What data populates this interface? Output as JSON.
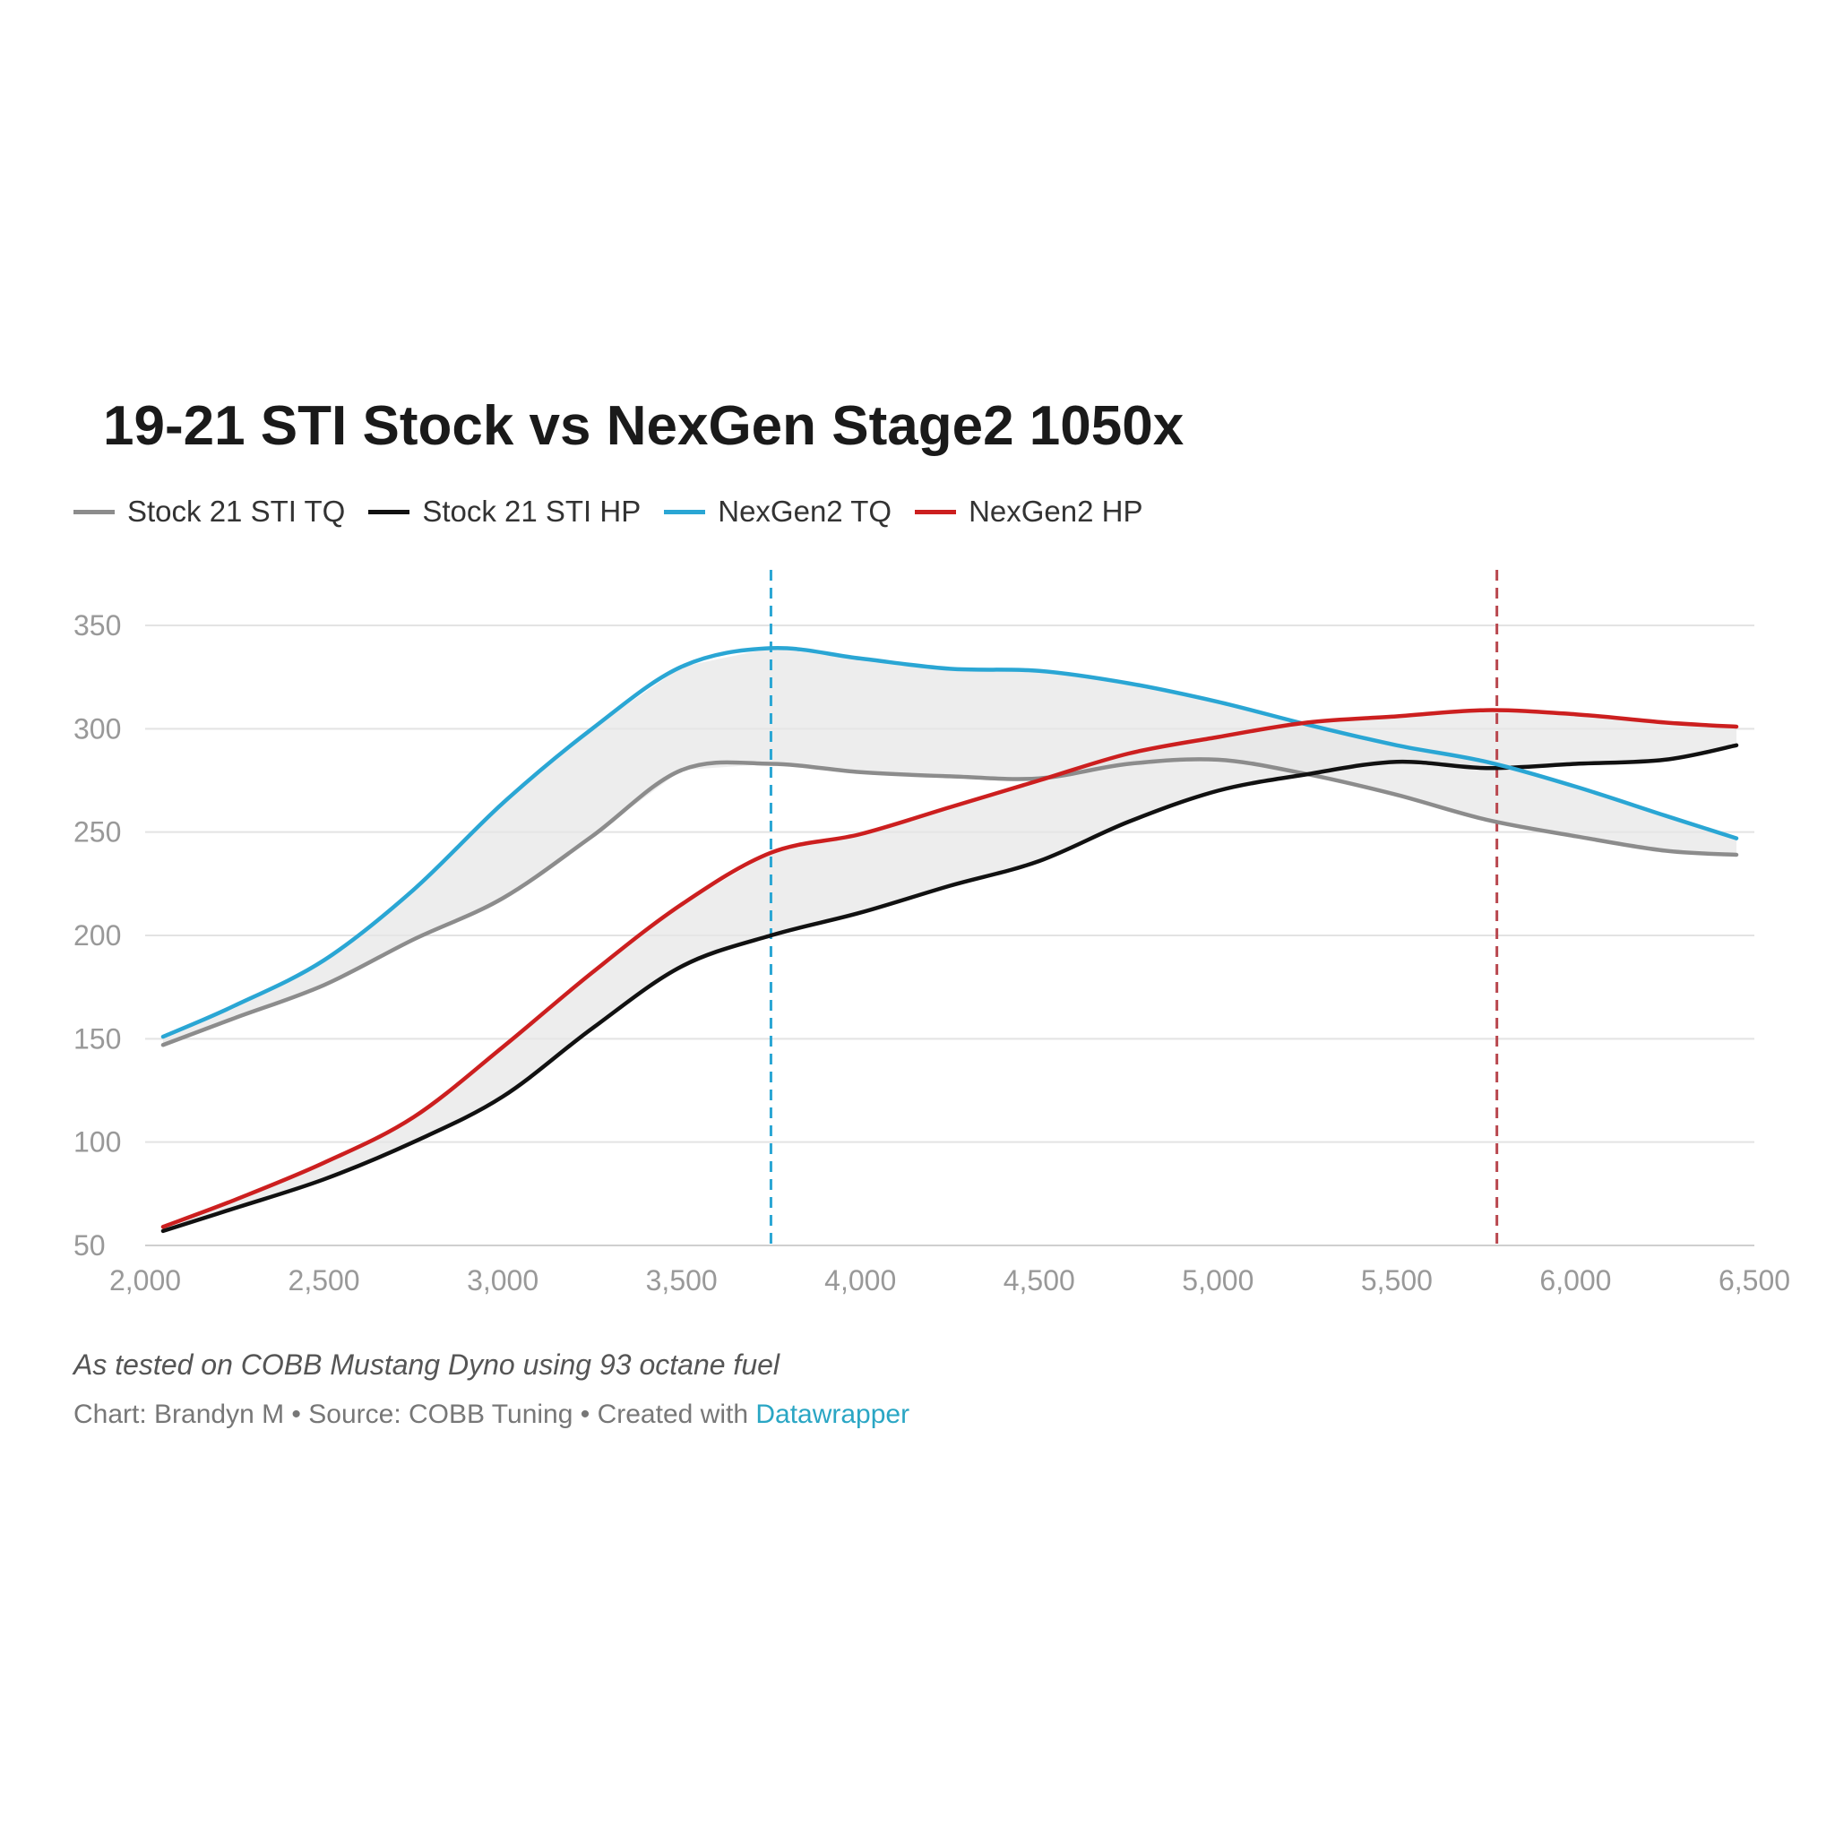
{
  "chart_data": {
    "type": "line",
    "title": "19-21 STI Stock vs NexGen Stage2 1050x",
    "xlim": [
      2000,
      6500
    ],
    "ylim": [
      50,
      350
    ],
    "x_ticks": [
      2000,
      2500,
      3000,
      3500,
      4000,
      4500,
      5000,
      5500,
      6000,
      6500
    ],
    "x_tick_labels": [
      "2,000",
      "2,500",
      "3,000",
      "3,500",
      "4,000",
      "4,500",
      "5,000",
      "5,500",
      "6,000",
      "6,500"
    ],
    "y_ticks": [
      50,
      100,
      150,
      200,
      250,
      300,
      350
    ],
    "y_tick_labels": [
      "50",
      "100",
      "150",
      "200",
      "250",
      "300",
      "350"
    ],
    "grid": true,
    "legend_position": "top-left",
    "series": [
      {
        "name": "Stock 21 STI TQ",
        "color": "#8c8c8c",
        "x": [
          2050,
          2250,
          2500,
          2750,
          3000,
          3250,
          3500,
          3750,
          4000,
          4250,
          4500,
          4750,
          5000,
          5250,
          5500,
          5750,
          6000,
          6250,
          6450
        ],
        "values": [
          147,
          160,
          176,
          198,
          218,
          248,
          280,
          283,
          279,
          277,
          276,
          283,
          285,
          278,
          268,
          256,
          248,
          241,
          239
        ]
      },
      {
        "name": "Stock 21 STI HP",
        "color": "#111111",
        "x": [
          2050,
          2250,
          2500,
          2750,
          3000,
          3250,
          3500,
          3750,
          4000,
          4250,
          4500,
          4750,
          5000,
          5250,
          5500,
          5750,
          6000,
          6250,
          6450
        ],
        "values": [
          57,
          68,
          82,
          100,
          122,
          155,
          185,
          200,
          211,
          224,
          236,
          255,
          270,
          278,
          284,
          281,
          283,
          285,
          292
        ]
      },
      {
        "name": "NexGen2 TQ",
        "color": "#2aa6d4",
        "x": [
          2050,
          2250,
          2500,
          2750,
          3000,
          3250,
          3500,
          3750,
          4000,
          4250,
          4500,
          4750,
          5000,
          5250,
          5500,
          5750,
          6000,
          6250,
          6450
        ],
        "values": [
          151,
          166,
          188,
          222,
          264,
          300,
          330,
          339,
          334,
          329,
          328,
          322,
          313,
          302,
          292,
          284,
          272,
          258,
          247
        ]
      },
      {
        "name": "NexGen2 HP",
        "color": "#cc1f1f",
        "x": [
          2050,
          2250,
          2500,
          2750,
          3000,
          3250,
          3500,
          3750,
          4000,
          4250,
          4500,
          4750,
          5000,
          5250,
          5500,
          5750,
          6000,
          6250,
          6450
        ],
        "values": [
          59,
          72,
          90,
          112,
          146,
          182,
          215,
          240,
          249,
          262,
          275,
          288,
          296,
          303,
          306,
          309,
          307,
          303,
          301
        ]
      }
    ],
    "reference_lines": [
      {
        "x": 3750,
        "color": "#2aa6d4"
      },
      {
        "x": 5780,
        "color": "#b9474e"
      }
    ],
    "note": "As tested on COBB Mustang Dyno using 93 octane fuel",
    "credits_prefix": "Chart: Brandyn M • Source: COBB Tuning • Created with ",
    "credits_link": "Datawrapper"
  }
}
